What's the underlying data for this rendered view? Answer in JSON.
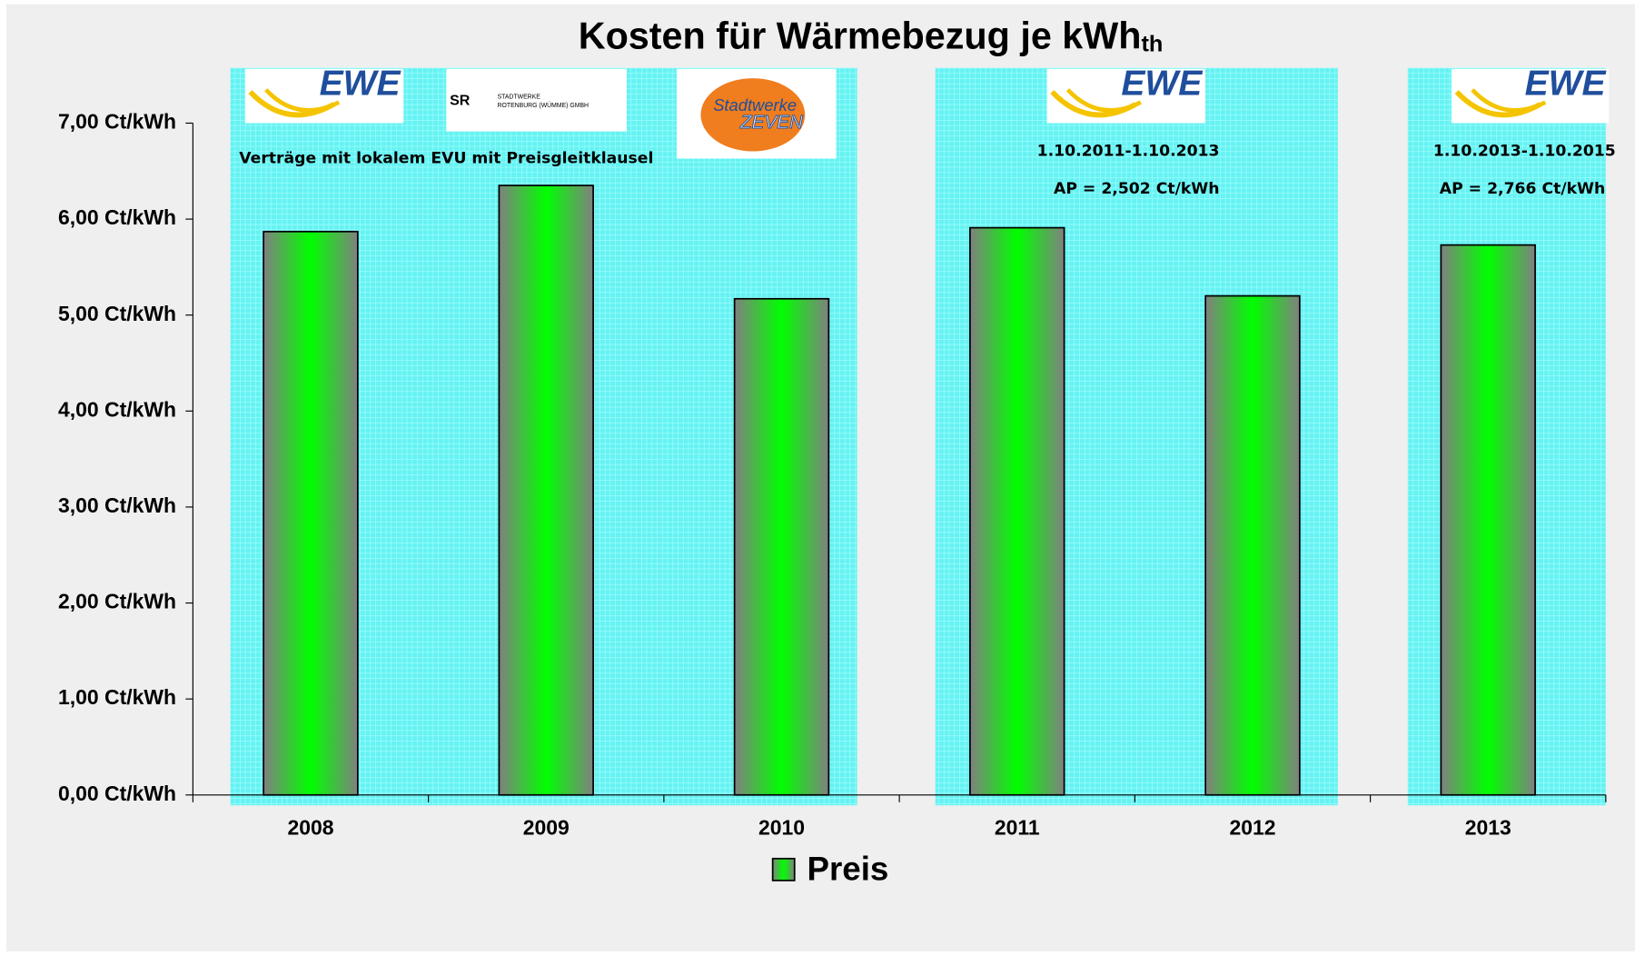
{
  "chart_data": {
    "type": "bar",
    "title": "Kosten für Wärmebezug je kWh",
    "title_subscript": "th",
    "categories": [
      "2008",
      "2009",
      "2010",
      "2011",
      "2012",
      "2013"
    ],
    "series": [
      {
        "name": "Preis",
        "color": "#00ff00",
        "values": [
          5.87,
          6.35,
          5.17,
          5.91,
          5.2,
          5.73
        ]
      }
    ],
    "ylim": [
      0,
      7
    ],
    "yticks": [
      {
        "value": 0,
        "label": "0,00 Ct/kWh"
      },
      {
        "value": 1,
        "label": "1,00 Ct/kWh"
      },
      {
        "value": 2,
        "label": "2,00 Ct/kWh"
      },
      {
        "value": 3,
        "label": "3,00 Ct/kWh"
      },
      {
        "value": 4,
        "label": "4,00 Ct/kWh"
      },
      {
        "value": 5,
        "label": "5,00 Ct/kWh"
      },
      {
        "value": 6,
        "label": "6,00 Ct/kWh"
      },
      {
        "value": 7,
        "label": "7,00 Ct/kWh"
      }
    ],
    "legend": "bottom",
    "annotations": [
      "Verträge mit lokalem EVU mit Preisgleitklausel",
      "1.10.2011-1.10.2013",
      "AP = 2,502 Ct/kWh",
      "1.10.2013-1.10.2015",
      "AP = 2,766 Ct/kWh"
    ],
    "logos": [
      "EWE",
      "SR",
      "STADTWERKE",
      "ROTENBURG (WÜMME) GMBH",
      "Stadtwerke",
      "ZEVEN",
      "EWE",
      "EWE"
    ]
  }
}
